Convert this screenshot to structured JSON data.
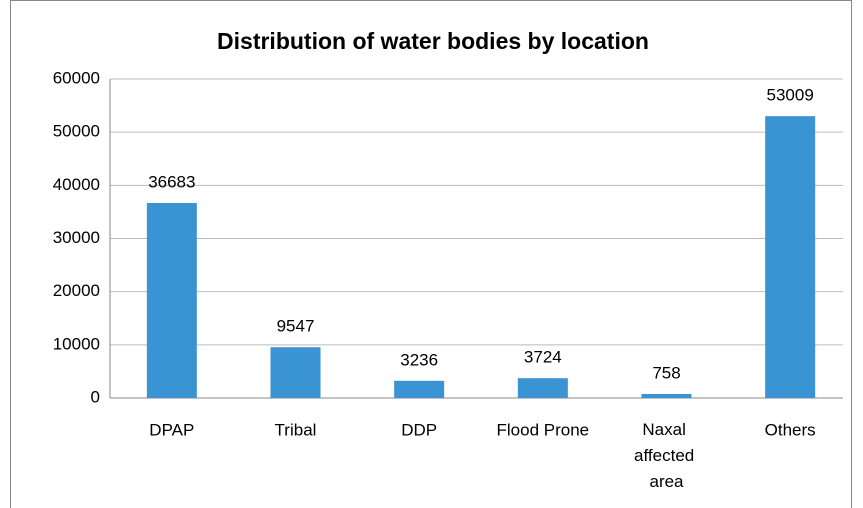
{
  "chart_data": {
    "type": "bar",
    "title": "Distribution of water bodies by location",
    "categories": [
      "DPAP",
      "Tribal",
      "DDP",
      "Flood Prone",
      "Naxal affected area",
      "Others"
    ],
    "values": [
      36683,
      9547,
      3236,
      3724,
      758,
      53009
    ],
    "color": "#3a93d2",
    "ylim": [
      0,
      60000
    ],
    "yticks": [
      0,
      10000,
      20000,
      30000,
      40000,
      50000,
      60000
    ],
    "grid": true
  }
}
